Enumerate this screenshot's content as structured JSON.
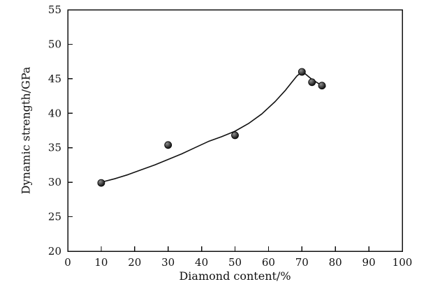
{
  "chart_data": {
    "type": "scatter",
    "title": "",
    "xlabel": "Diamond content/%",
    "ylabel": "Dynamic strength/GPa",
    "xlim": [
      0,
      100
    ],
    "ylim": [
      20,
      55
    ],
    "xticks": [
      0,
      10,
      20,
      30,
      40,
      50,
      60,
      70,
      80,
      90,
      100
    ],
    "yticks": [
      20,
      25,
      30,
      35,
      40,
      45,
      50,
      55
    ],
    "grid": false,
    "legend": "none",
    "series": [
      {
        "name": "data-points",
        "type": "scatter",
        "x": [
          10,
          30,
          50,
          70,
          73,
          76
        ],
        "y": [
          29.9,
          35.4,
          36.8,
          46.0,
          44.5,
          44.0
        ]
      },
      {
        "name": "fit-curve",
        "type": "line",
        "x": [
          10,
          14,
          18,
          22,
          26,
          30,
          34,
          38,
          42,
          46,
          50,
          54,
          58,
          62,
          65,
          67,
          68.5,
          70,
          71,
          72,
          73,
          74,
          75,
          76,
          77
        ],
        "y": [
          30.0,
          30.5,
          31.1,
          31.8,
          32.5,
          33.3,
          34.1,
          35.0,
          35.9,
          36.6,
          37.4,
          38.5,
          39.9,
          41.7,
          43.3,
          44.5,
          45.4,
          46.0,
          45.7,
          45.3,
          44.9,
          44.6,
          44.3,
          44.1,
          43.9
        ]
      }
    ],
    "colors": {
      "axis": "#111111",
      "line": "#111111",
      "point_fill": "#2b2b2b",
      "point_highlight": "#8f8f8f",
      "point_stroke": "#000000"
    }
  }
}
